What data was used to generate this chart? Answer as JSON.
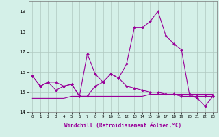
{
  "xlabel": "Windchill (Refroidissement éolien,°C)",
  "x": [
    0,
    1,
    2,
    3,
    4,
    5,
    6,
    7,
    8,
    9,
    10,
    11,
    12,
    13,
    14,
    15,
    16,
    17,
    18,
    19,
    20,
    21,
    22,
    23
  ],
  "line1": [
    15.8,
    15.3,
    15.5,
    15.1,
    15.3,
    15.4,
    14.8,
    14.8,
    15.3,
    15.5,
    15.9,
    15.7,
    16.4,
    18.2,
    18.2,
    18.5,
    19.0,
    17.8,
    17.4,
    17.1,
    14.9,
    14.7,
    14.3,
    14.8
  ],
  "line2": [
    15.8,
    15.3,
    15.5,
    15.5,
    15.3,
    15.4,
    14.8,
    16.9,
    15.9,
    15.5,
    15.9,
    15.7,
    15.3,
    15.2,
    15.1,
    15.0,
    15.0,
    14.9,
    14.9,
    14.8,
    14.8,
    14.8,
    14.8,
    14.8
  ],
  "line3": [
    14.7,
    14.7,
    14.7,
    14.7,
    14.7,
    14.8,
    14.8,
    14.8,
    14.8,
    14.8,
    14.8,
    14.8,
    14.8,
    14.8,
    14.8,
    14.9,
    14.9,
    14.9,
    14.9,
    14.9,
    14.9,
    14.9,
    14.9,
    14.9
  ],
  "line_color": "#990099",
  "bg_color": "#d4f0e8",
  "grid_color": "#b0c8c0",
  "ylim": [
    14.0,
    19.5
  ],
  "yticks": [
    14,
    15,
    16,
    17,
    18,
    19
  ],
  "xticks": [
    0,
    1,
    2,
    3,
    4,
    5,
    6,
    7,
    8,
    9,
    10,
    11,
    12,
    13,
    14,
    15,
    16,
    17,
    18,
    19,
    20,
    21,
    22,
    23
  ],
  "xlim": [
    -0.5,
    23.5
  ]
}
